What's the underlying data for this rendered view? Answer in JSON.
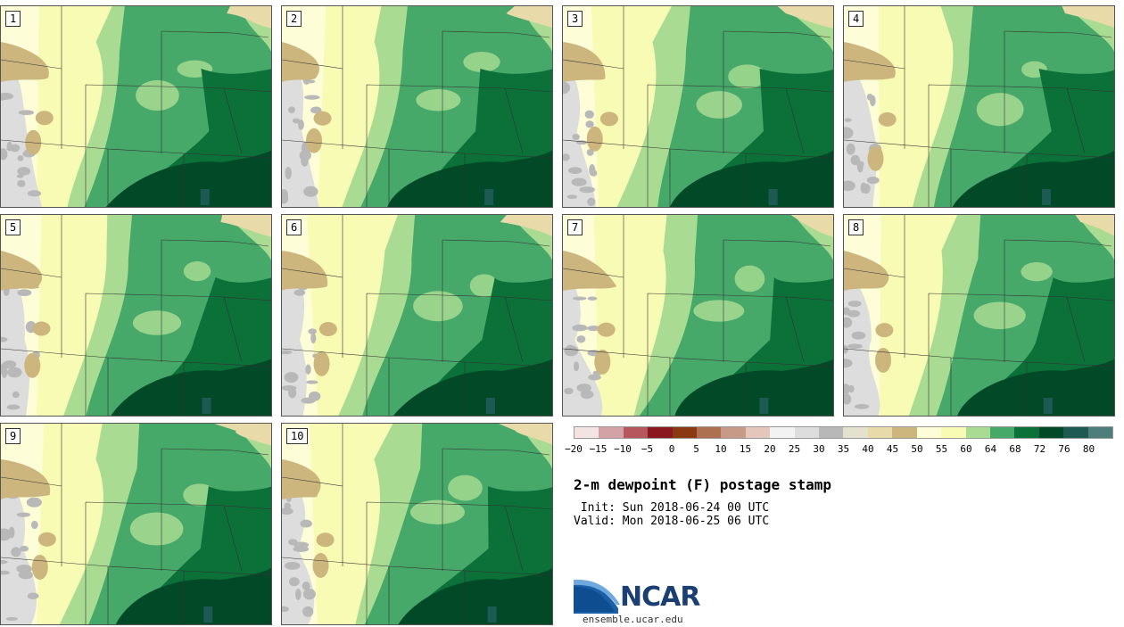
{
  "panels": [
    {
      "label": "1"
    },
    {
      "label": "2"
    },
    {
      "label": "3"
    },
    {
      "label": "4"
    },
    {
      "label": "5"
    },
    {
      "label": "6"
    },
    {
      "label": "7"
    },
    {
      "label": "8"
    },
    {
      "label": "9"
    },
    {
      "label": "10"
    }
  ],
  "colorbar": {
    "colors": [
      "#f3e4e4",
      "#d3a2a6",
      "#b5575d",
      "#8a1820",
      "#8a3a10",
      "#ad7050",
      "#c69a86",
      "#e2c7ba",
      "#f2f2f2",
      "#dddddd",
      "#b8b8b8",
      "#e2e2cf",
      "#e8dba9",
      "#cdb67e",
      "#fdfdd8",
      "#f8fbb4",
      "#a9dc92",
      "#46a96a",
      "#0b7139",
      "#024a27",
      "#1d5a54",
      "#4e7e7b"
    ],
    "ticks": [
      "−20",
      "−15",
      "−10",
      "−5",
      "0",
      "5",
      "10",
      "15",
      "20",
      "25",
      "30",
      "35",
      "40",
      "45",
      "50",
      "55",
      "60",
      "64",
      "68",
      "72",
      "76",
      "80"
    ]
  },
  "title": "2-m dewpoint (F) postage stamp",
  "init": " Init: Sun 2018-06-24 00 UTC",
  "valid": "Valid: Mon 2018-06-25 06 UTC",
  "logo": {
    "text": "NCAR",
    "site": "ensemble.ucar.edu",
    "brand_color": "#1b3f73",
    "swoosh_color": "#3b7cc0"
  }
}
